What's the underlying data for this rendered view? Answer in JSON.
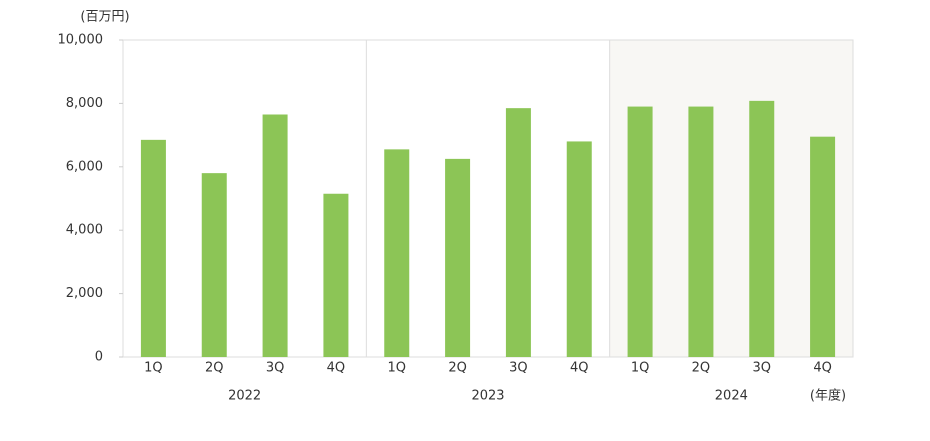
{
  "chart_data": {
    "type": "bar",
    "y_unit": "(百万円)",
    "x_unit": "(年度)",
    "categories": [
      "1Q",
      "2Q",
      "3Q",
      "4Q",
      "1Q",
      "2Q",
      "3Q",
      "4Q",
      "1Q",
      "2Q",
      "3Q",
      "4Q"
    ],
    "groups": [
      "2022",
      "2023",
      "2024"
    ],
    "shaded_group": 2,
    "values": [
      6850,
      5800,
      7650,
      5150,
      6550,
      6250,
      7850,
      6800,
      7900,
      7900,
      8080,
      6950
    ],
    "color": "#8cc556",
    "ylim": [
      0,
      10000
    ],
    "yticks": [
      0,
      {
        "value": 2000,
        "label": "2,000"
      },
      {
        "value": 4000,
        "label": "4,000"
      },
      {
        "value": 6000,
        "label": "6,000"
      },
      {
        "value": 8000,
        "label": "8,000"
      },
      {
        "value": 10000,
        "label": "10,000"
      }
    ],
    "grid": false
  }
}
